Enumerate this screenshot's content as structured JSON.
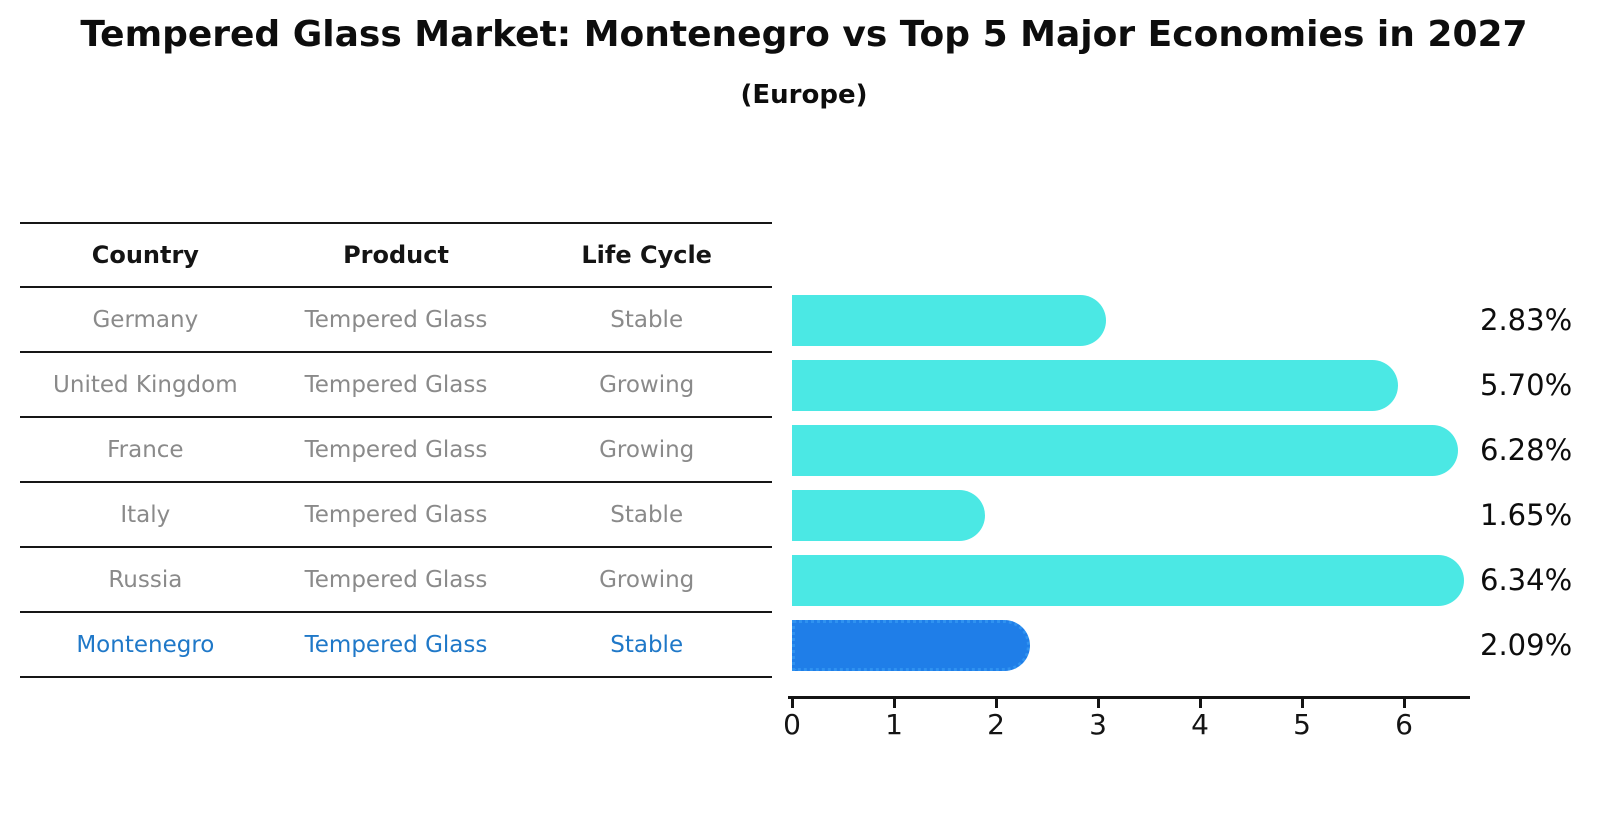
{
  "title": "Tempered Glass Market: Montenegro vs Top 5 Major Economies in 2027",
  "subtitle": "(Europe)",
  "table": {
    "headers": [
      "Country",
      "Product",
      "Life Cycle"
    ],
    "rows": [
      {
        "country": "Germany",
        "product": "Tempered Glass",
        "life_cycle": "Stable",
        "highlight": false
      },
      {
        "country": "United Kingdom",
        "product": "Tempered Glass",
        "life_cycle": "Growing",
        "highlight": false
      },
      {
        "country": "France",
        "product": "Tempered Glass",
        "life_cycle": "Growing",
        "highlight": false
      },
      {
        "country": "Italy",
        "product": "Tempered Glass",
        "life_cycle": "Stable",
        "highlight": false
      },
      {
        "country": "Russia",
        "product": "Tempered Glass",
        "life_cycle": "Growing",
        "highlight": false
      },
      {
        "country": "Montenegro",
        "product": "Tempered Glass",
        "life_cycle": "Stable",
        "highlight": true
      }
    ]
  },
  "chart_data": {
    "type": "bar",
    "orientation": "horizontal",
    "title": "Tempered Glass Market: Montenegro vs Top 5 Major Economies in 2027",
    "subtitle": "(Europe)",
    "categories": [
      "Germany",
      "United Kingdom",
      "France",
      "Italy",
      "Russia",
      "Montenegro"
    ],
    "values": [
      2.83,
      5.7,
      6.28,
      1.65,
      6.34,
      2.09
    ],
    "value_labels": [
      "2.83%",
      "5.70%",
      "6.28%",
      "1.65%",
      "6.34%",
      "2.09%"
    ],
    "x_ticks": [
      "0",
      "1",
      "2",
      "3",
      "4",
      "5",
      "6"
    ],
    "xlim": [
      0,
      6.65
    ],
    "xlabel": "",
    "ylabel": "",
    "grid": false,
    "legend": "none",
    "highlight_index": 5
  },
  "colors": {
    "bar": "#4BE8E4",
    "highlight_bar": "#1F7EE8",
    "highlight_bar_edge": "#2F92F0",
    "highlight_text": "#1F78C8",
    "row_text": "#8A8A8A",
    "axis": "#141414",
    "title_text": "#0D0D0D"
  }
}
